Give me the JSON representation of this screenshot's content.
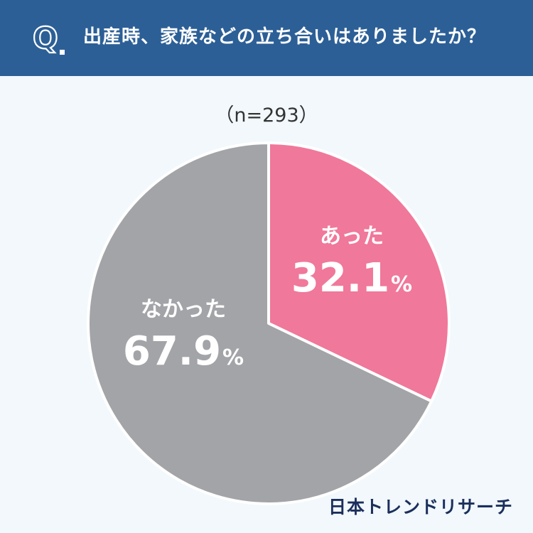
{
  "header": {
    "q_letter": "Q",
    "question": "出産時、家族などの立ち合いはありましたか？"
  },
  "sample_size": "（n=293）",
  "chart_data": {
    "type": "pie",
    "slices": [
      {
        "label": "あった",
        "value": 32.1,
        "value_text": "32.1",
        "unit": "%",
        "color": "#f0789a"
      },
      {
        "label": "なかった",
        "value": 67.9,
        "value_text": "67.9",
        "unit": "%",
        "color": "#a3a4a8"
      }
    ],
    "start": "12 o'clock",
    "direction": "clockwise"
  },
  "colors": {
    "header_bg": "#2c5f96",
    "page_bg": "#f2f8fb",
    "separator": "#ffffff"
  },
  "brand": "日本トレンドリサーチ"
}
